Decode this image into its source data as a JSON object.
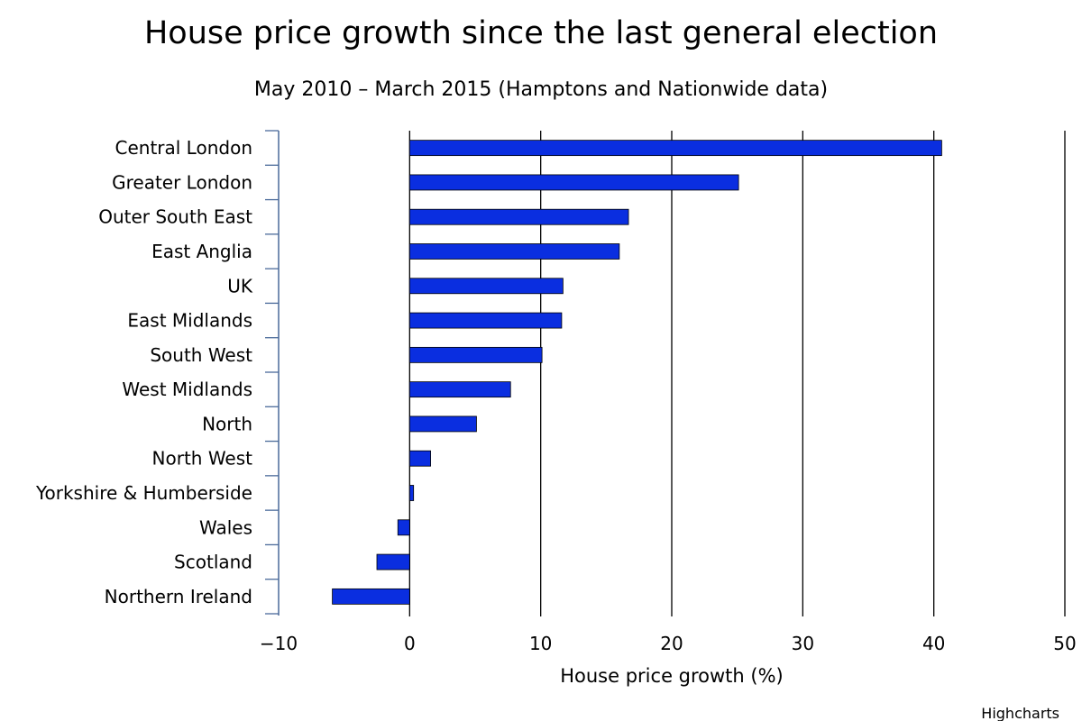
{
  "chart_data": {
    "type": "bar",
    "orientation": "horizontal",
    "title": "House price growth since the last general election",
    "subtitle": "May 2010 – March 2015 (Hamptons and Nationwide data)",
    "xlabel": "House price growth (%)",
    "ylabel": "",
    "categories": [
      "Central London",
      "Greater London",
      "Outer South East",
      "East Anglia",
      "UK",
      "East Midlands",
      "South West",
      "West Midlands",
      "North",
      "North West",
      "Yorkshire & Humberside",
      "Wales",
      "Scotland",
      "Northern Ireland"
    ],
    "values": [
      40.6,
      25.1,
      16.7,
      16.0,
      11.7,
      11.6,
      10.1,
      7.7,
      5.1,
      1.6,
      0.3,
      -0.9,
      -2.5,
      -5.9
    ],
    "xlim": [
      -10,
      50
    ],
    "xticks": [
      -10,
      0,
      10,
      20,
      30,
      40,
      50
    ],
    "xtick_labels": [
      "−10",
      "0",
      "10",
      "20",
      "30",
      "40",
      "50"
    ],
    "grid": true,
    "legend": "none",
    "bar_color": "#0a2ee0",
    "bar_stroke": "#000000",
    "grid_color": "#000000",
    "axis_color": "#4a6a9a"
  },
  "credits": {
    "label": "Highcharts"
  }
}
